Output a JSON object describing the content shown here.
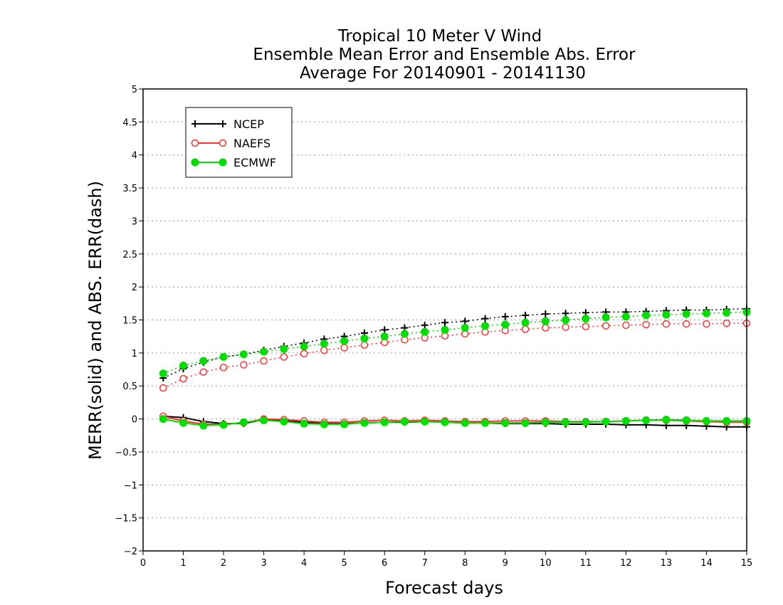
{
  "chart_data": {
    "type": "line",
    "title": [
      "Tropical 10 Meter V Wind",
      "Ensemble Mean Error and Ensemble Abs. Error",
      "Average For 20140901 - 20141130"
    ],
    "xlabel": "Forecast days",
    "ylabel": "MERR(solid) and ABS. ERR(dash)",
    "xlim": [
      0,
      15
    ],
    "ylim": [
      -2,
      5
    ],
    "xticks": [
      0,
      1,
      2,
      3,
      4,
      5,
      6,
      7,
      8,
      9,
      10,
      11,
      12,
      13,
      14,
      15
    ],
    "yticks": [
      -2,
      -1.5,
      -1,
      -0.5,
      0,
      0.5,
      1,
      1.5,
      2,
      2.5,
      3,
      3.5,
      4,
      4.5,
      5
    ],
    "ytick_labels": [
      "−2",
      "−1.5",
      "−1",
      "−0.5",
      "0",
      "0.5",
      "1",
      "1.5",
      "2",
      "2.5",
      "3",
      "3.5",
      "4",
      "4.5",
      "5"
    ],
    "grid": "horizontal dotted",
    "legend_placement": "top-left",
    "x": [
      0.5,
      1,
      1.5,
      2,
      2.5,
      3,
      3.5,
      4,
      4.5,
      5,
      5.5,
      6,
      6.5,
      7,
      7.5,
      8,
      8.5,
      9,
      9.5,
      10,
      10.5,
      11,
      11.5,
      12,
      12.5,
      13,
      13.5,
      14,
      14.5,
      15
    ],
    "series": [
      {
        "name": "NCEP",
        "color": "#000000",
        "marker": "plus",
        "merr": [
          0.04,
          0.02,
          -0.04,
          -0.07,
          -0.07,
          -0.01,
          -0.03,
          -0.05,
          -0.07,
          -0.07,
          -0.06,
          -0.05,
          -0.05,
          -0.04,
          -0.05,
          -0.06,
          -0.06,
          -0.07,
          -0.07,
          -0.07,
          -0.08,
          -0.08,
          -0.08,
          -0.09,
          -0.09,
          -0.1,
          -0.1,
          -0.11,
          -0.12,
          -0.12
        ],
        "abs_err": [
          0.62,
          0.76,
          0.86,
          0.94,
          0.98,
          1.04,
          1.1,
          1.15,
          1.21,
          1.25,
          1.3,
          1.35,
          1.38,
          1.42,
          1.46,
          1.48,
          1.52,
          1.55,
          1.57,
          1.59,
          1.6,
          1.61,
          1.62,
          1.62,
          1.63,
          1.64,
          1.65,
          1.65,
          1.66,
          1.67
        ]
      },
      {
        "name": "NAEFS",
        "color": "#ff3333",
        "marker": "open-circle",
        "merr": [
          0.04,
          -0.03,
          -0.08,
          -0.08,
          -0.06,
          0.0,
          -0.01,
          -0.03,
          -0.05,
          -0.05,
          -0.03,
          -0.02,
          -0.03,
          -0.02,
          -0.03,
          -0.04,
          -0.04,
          -0.03,
          -0.03,
          -0.03,
          -0.04,
          -0.04,
          -0.04,
          -0.03,
          -0.02,
          -0.02,
          -0.03,
          -0.04,
          -0.05,
          -0.05
        ],
        "abs_err": [
          0.47,
          0.61,
          0.71,
          0.78,
          0.82,
          0.88,
          0.94,
          0.99,
          1.04,
          1.08,
          1.12,
          1.16,
          1.2,
          1.23,
          1.26,
          1.29,
          1.32,
          1.34,
          1.36,
          1.38,
          1.39,
          1.4,
          1.41,
          1.42,
          1.43,
          1.44,
          1.44,
          1.44,
          1.45,
          1.45
        ]
      },
      {
        "name": "ECMWF",
        "color": "#00dd00",
        "marker": "filled-circle",
        "merr": [
          0.0,
          -0.06,
          -0.1,
          -0.09,
          -0.05,
          -0.02,
          -0.04,
          -0.07,
          -0.08,
          -0.08,
          -0.06,
          -0.05,
          -0.04,
          -0.04,
          -0.05,
          -0.06,
          -0.06,
          -0.06,
          -0.06,
          -0.05,
          -0.05,
          -0.05,
          -0.04,
          -0.03,
          -0.02,
          -0.01,
          -0.02,
          -0.03,
          -0.03,
          -0.03
        ],
        "abs_err": [
          0.69,
          0.81,
          0.88,
          0.94,
          0.98,
          1.02,
          1.06,
          1.1,
          1.14,
          1.18,
          1.22,
          1.25,
          1.29,
          1.32,
          1.35,
          1.38,
          1.41,
          1.43,
          1.46,
          1.48,
          1.5,
          1.52,
          1.54,
          1.55,
          1.57,
          1.58,
          1.59,
          1.6,
          1.61,
          1.62
        ]
      }
    ]
  }
}
